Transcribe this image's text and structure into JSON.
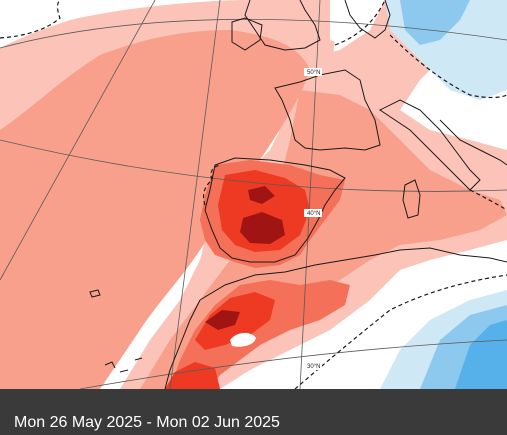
{
  "map": {
    "colors": {
      "background": "#ffffff",
      "light_warm": "#fcc4b8",
      "warm": "#f8a08c",
      "strong_warm": "#f47058",
      "hot": "#ee3a22",
      "very_hot": "#a11414",
      "light_cool": "#cfe8f6",
      "cool": "#8dc8ee",
      "strong_cool": "#56b0ea",
      "coast": "#1a1a1a",
      "graticule": "#5a5a5a"
    },
    "latitude_labels": [
      "50°N",
      "40°N",
      "30°N"
    ]
  },
  "caption": {
    "text": "Mon 26 May 2025 - Mon 02 Jun 2025"
  }
}
